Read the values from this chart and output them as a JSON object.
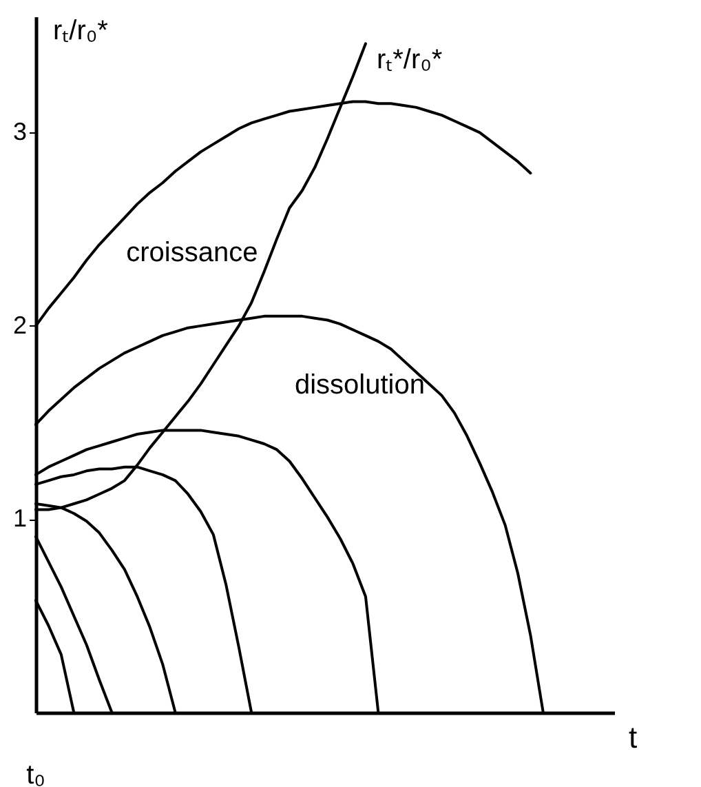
{
  "chart_data": {
    "type": "line",
    "xlabel": "t",
    "ylabel": "rₜ/r₀*",
    "categories": [
      null,
      null,
      null,
      null,
      null,
      null,
      null,
      null,
      null,
      null,
      null,
      null,
      null,
      null,
      null,
      null,
      null,
      null,
      null,
      null,
      null,
      null,
      null,
      null,
      null,
      null,
      null,
      null,
      null,
      null,
      null,
      null,
      null,
      null,
      null,
      null,
      null,
      null,
      null,
      null,
      null
    ],
    "ylim": [
      0,
      3.6
    ],
    "yticks": [
      1,
      2,
      3
    ],
    "series": [
      {
        "color": "#000000",
        "values": [
          2.0,
          2.09,
          2.17,
          2.25,
          2.34,
          2.42,
          2.49,
          2.56,
          2.63,
          2.69,
          2.74,
          2.8,
          2.85,
          2.9,
          2.94,
          2.98,
          3.02,
          3.05,
          3.07,
          3.09,
          3.11,
          3.12,
          3.13,
          3.14,
          3.15,
          3.16,
          3.16,
          3.15,
          3.15,
          3.14,
          3.13,
          3.11,
          3.09,
          3.06,
          3.03,
          3.0,
          2.95,
          2.9,
          2.85,
          2.79,
          null
        ]
      },
      {
        "color": "#000000",
        "values": [
          1.49,
          1.56,
          1.62,
          1.68,
          1.73,
          1.78,
          1.82,
          1.86,
          1.89,
          1.92,
          1.95,
          1.97,
          1.99,
          2.0,
          2.01,
          2.02,
          2.03,
          2.04,
          2.05,
          2.05,
          2.05,
          2.05,
          2.04,
          2.03,
          2.01,
          1.98,
          1.95,
          1.92,
          1.88,
          1.82,
          1.76,
          1.7,
          1.64,
          1.55,
          1.43,
          1.29,
          1.14,
          0.97,
          0.72,
          0.4,
          0
        ]
      },
      {
        "color": "#000000",
        "values": [
          1.23,
          1.27,
          1.3,
          1.33,
          1.36,
          1.38,
          1.4,
          1.42,
          1.44,
          1.45,
          1.46,
          1.46,
          1.46,
          1.46,
          1.45,
          1.44,
          1.43,
          1.41,
          1.39,
          1.36,
          1.3,
          1.21,
          1.11,
          1.01,
          0.9,
          0.77,
          0.6,
          0,
          null,
          null,
          null,
          null,
          null,
          null,
          null,
          null,
          null,
          null,
          null,
          null,
          null
        ]
      },
      {
        "color": "#000000",
        "values": [
          1.18,
          1.2,
          1.22,
          1.23,
          1.25,
          1.26,
          1.26,
          1.27,
          1.27,
          1.25,
          1.23,
          1.2,
          1.13,
          1.04,
          0.92,
          0.66,
          0.34,
          0,
          null,
          null,
          null,
          null,
          null,
          null,
          null,
          null,
          null,
          null,
          null,
          null,
          null,
          null,
          null,
          null,
          null,
          null,
          null,
          null,
          null,
          null,
          null
        ]
      },
      {
        "color": "#000000",
        "values": [
          1.08,
          1.07,
          1.06,
          1.03,
          0.99,
          0.93,
          0.84,
          0.74,
          0.6,
          0.44,
          0.25,
          0,
          null,
          null,
          null,
          null,
          null,
          null,
          null,
          null,
          null,
          null,
          null,
          null,
          null,
          null,
          null,
          null,
          null,
          null,
          null,
          null,
          null,
          null,
          null,
          null,
          null,
          null,
          null,
          null,
          null
        ]
      },
      {
        "color": "#000000",
        "values": [
          0.91,
          0.78,
          0.65,
          0.5,
          0.35,
          0.17,
          0,
          null,
          null,
          null,
          null,
          null,
          null,
          null,
          null,
          null,
          null,
          null,
          null,
          null,
          null,
          null,
          null,
          null,
          null,
          null,
          null,
          null,
          null,
          null,
          null,
          null,
          null,
          null,
          null,
          null,
          null,
          null,
          null,
          null,
          null
        ]
      },
      {
        "color": "#000000",
        "values": [
          0.58,
          0.45,
          0.3,
          0,
          null,
          null,
          null,
          null,
          null,
          null,
          null,
          null,
          null,
          null,
          null,
          null,
          null,
          null,
          null,
          null,
          null,
          null,
          null,
          null,
          null,
          null,
          null,
          null,
          null,
          null,
          null,
          null,
          null,
          null,
          null,
          null,
          null,
          null,
          null,
          null,
          null
        ]
      },
      {
        "name": "rₜ*/r₀*",
        "color": "#000000",
        "values": [
          1.05,
          1.05,
          1.06,
          1.08,
          1.1,
          1.13,
          1.16,
          1.2,
          1.28,
          1.37,
          1.45,
          1.53,
          1.61,
          1.7,
          1.8,
          1.9,
          2.0,
          2.12,
          2.28,
          2.45,
          2.61,
          2.7,
          2.82,
          2.97,
          3.13,
          3.29,
          3.46,
          null,
          null,
          null,
          null,
          null,
          null,
          null,
          null,
          null,
          null,
          null,
          null,
          null,
          null
        ]
      }
    ],
    "annotations": [
      "t₀",
      "croissance",
      "dissolution"
    ],
    "grid": false,
    "legend": false,
    "marker": "none",
    "line_style": "solid"
  }
}
